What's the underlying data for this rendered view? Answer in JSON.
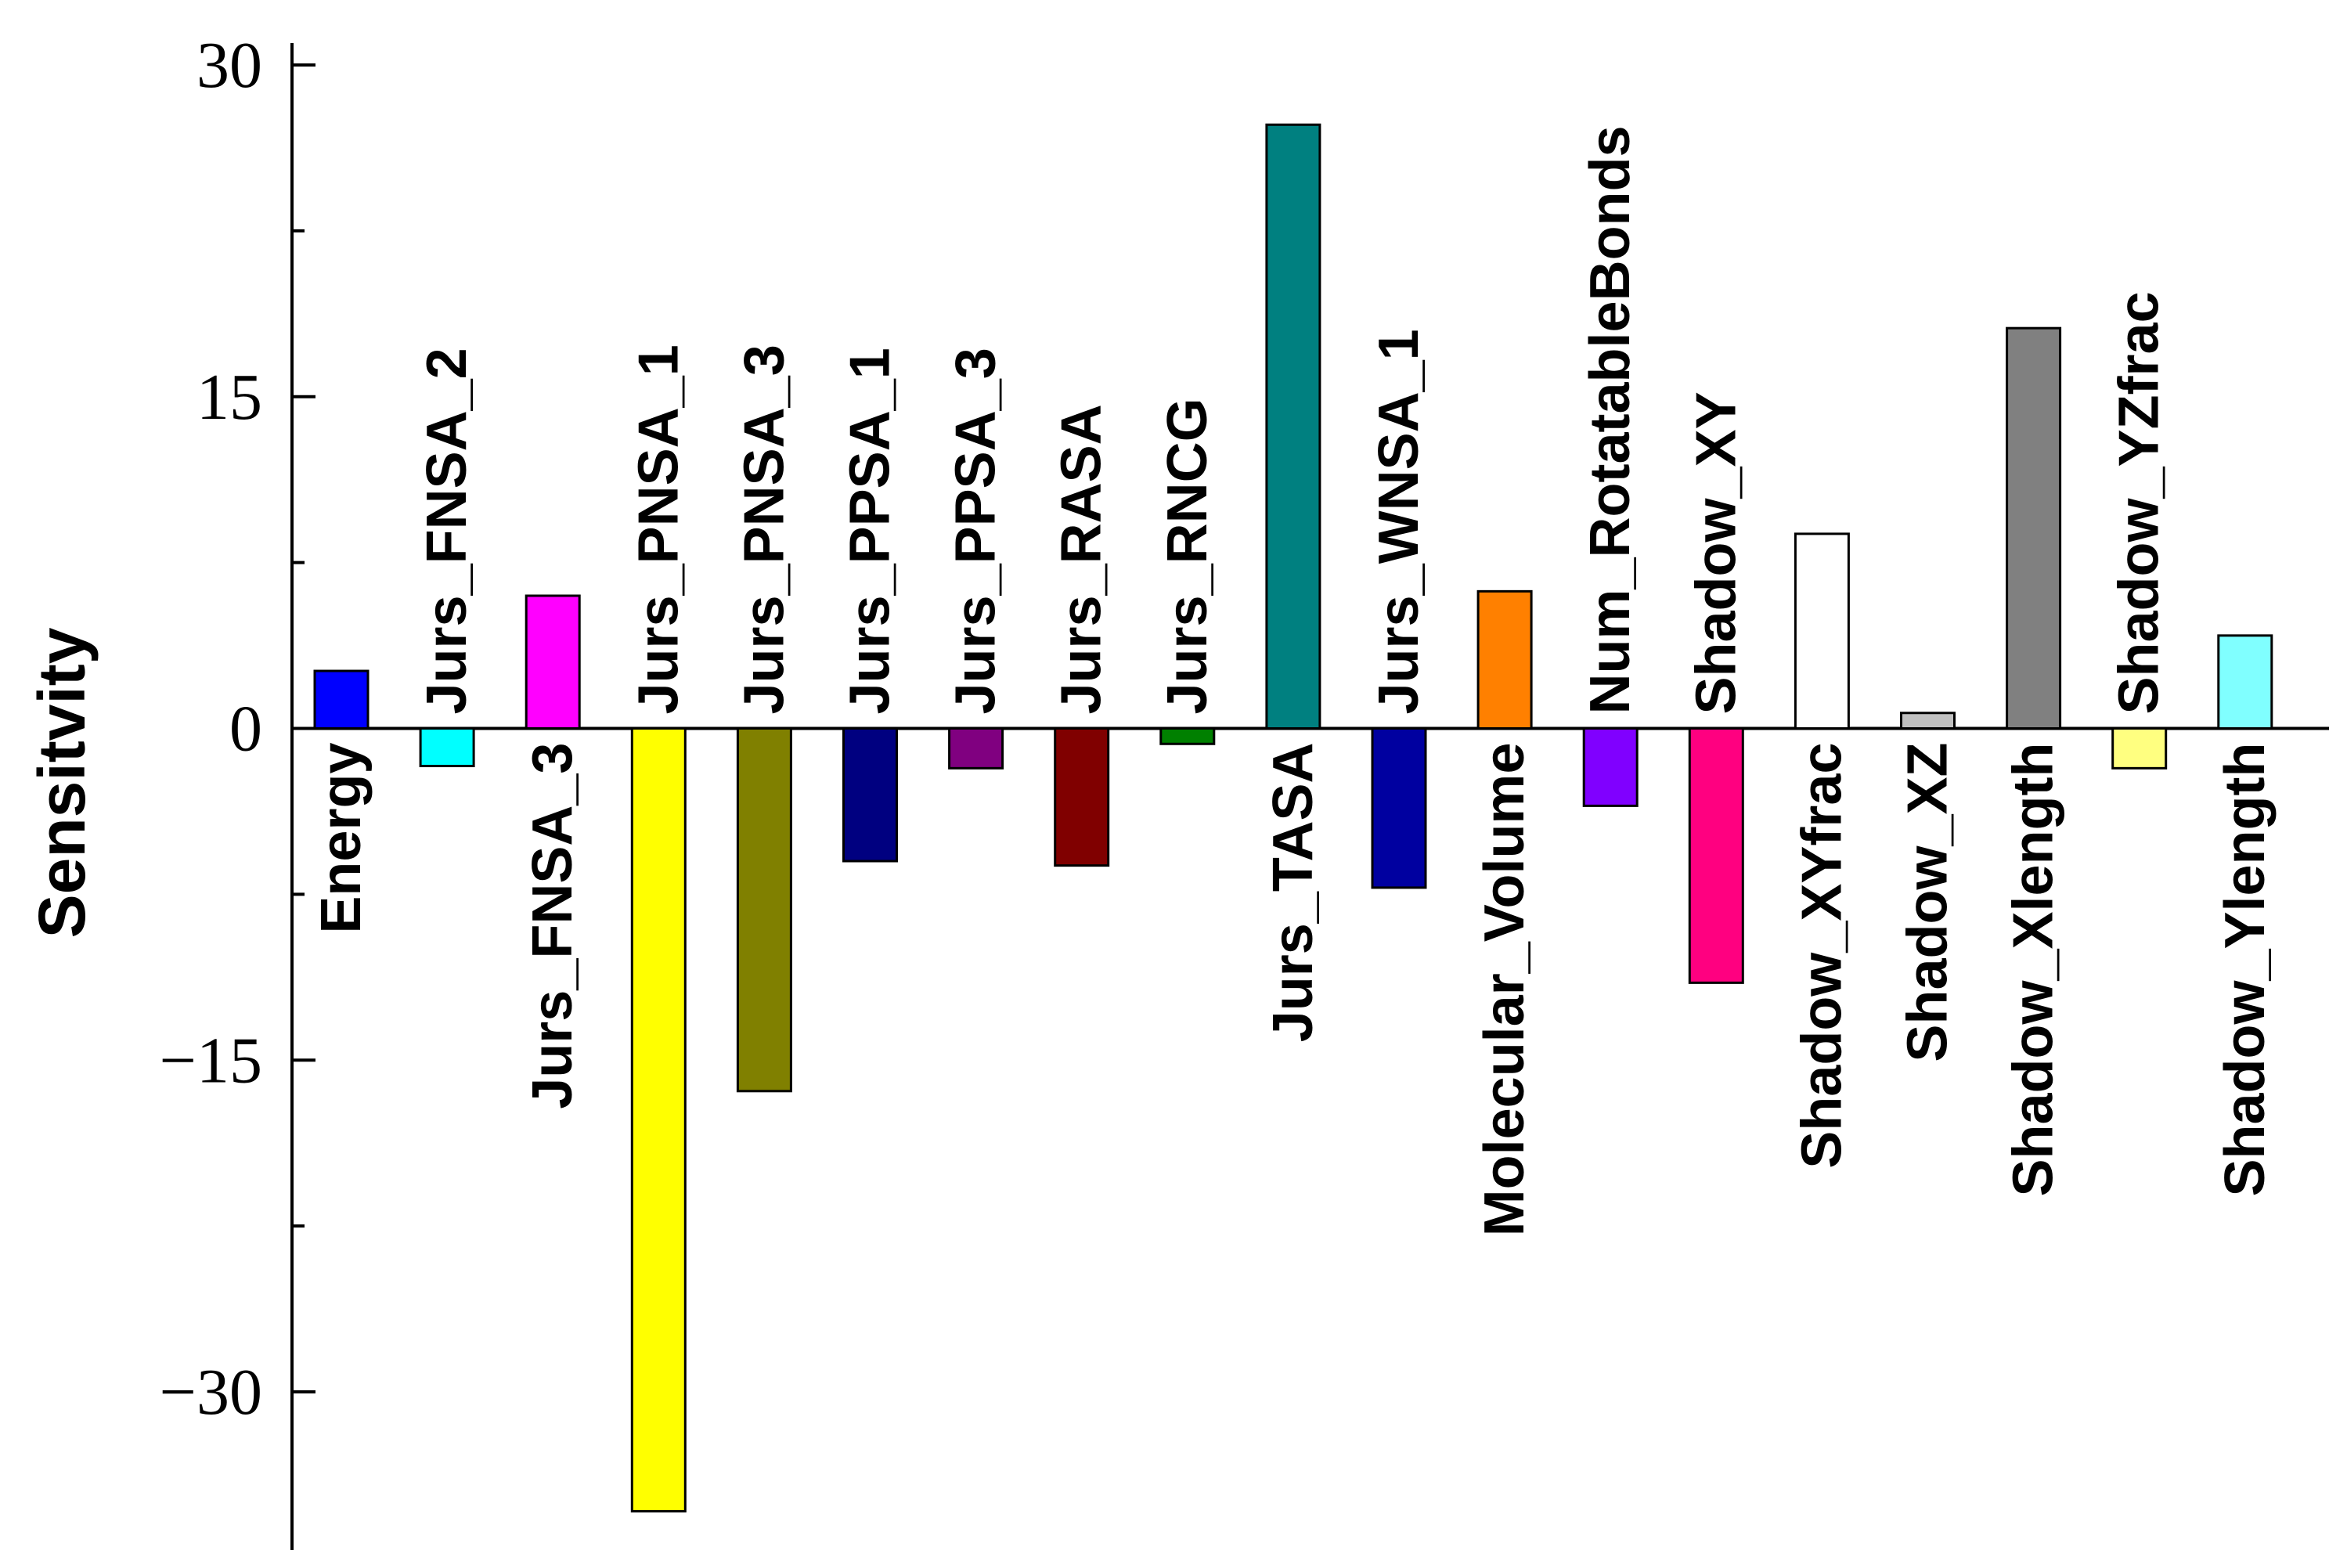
{
  "chart_data": {
    "type": "bar",
    "title": "",
    "xlabel": "",
    "ylabel": "Sensitvity",
    "ylim": [
      -37,
      30
    ],
    "yticks": [
      30,
      15,
      0,
      -15,
      -30
    ],
    "ytick_labels": [
      "30",
      "15",
      "0",
      "−15",
      "−30"
    ],
    "categories": [
      "Energy",
      "Jurs_FNSA_2",
      "Jurs_FNSA_3",
      "Jurs_PNSA_1",
      "Jurs_PNSA_3",
      "Jurs_PPSA_1",
      "Jurs_PPSA_3",
      "Jurs_RASA",
      "Jurs_RNCG",
      "Jurs_TASA",
      "Jurs_WNSA_1",
      "Molecular_Volume",
      "Num_RotatableBonds",
      "Shadow_XY",
      "Shadow_XYfrac",
      "Shadow_XZ",
      "Shadow_Xlength",
      "Shadow_YZfrac",
      "Shadow_Ylength"
    ],
    "values": [
      2.6,
      -1.7,
      6.0,
      -35.4,
      -16.4,
      -6.0,
      -1.8,
      -6.2,
      -0.7,
      27.3,
      -7.2,
      6.2,
      -3.5,
      -11.5,
      8.8,
      0.7,
      18.1,
      -1.8,
      4.2
    ],
    "colors": [
      "#0000ff",
      "#00ffff",
      "#ff00ff",
      "#ffff00",
      "#808000",
      "#000080",
      "#800080",
      "#800000",
      "#008000",
      "#008080",
      "#0000a0",
      "#ff8000",
      "#8000ff",
      "#ff0080",
      "#ffffff",
      "#c0c0c0",
      "#808080",
      "#ffff80",
      "#80ffff"
    ]
  }
}
